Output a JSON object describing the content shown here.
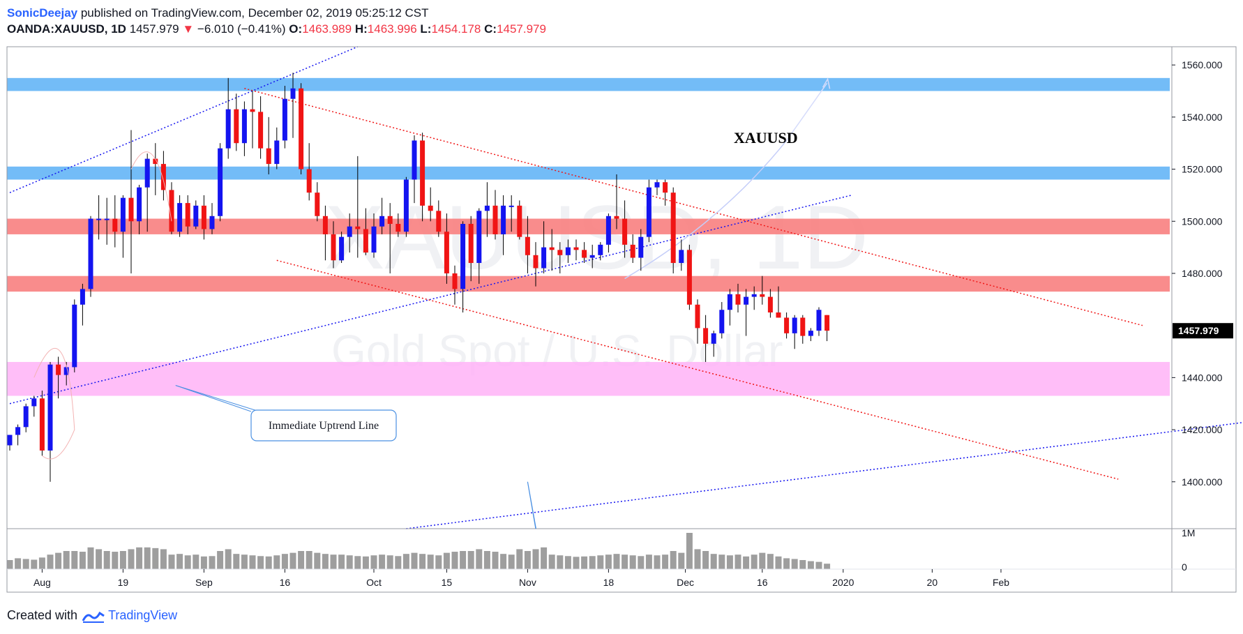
{
  "header": {
    "author": "SonicDeejay",
    "published_text": "published on TradingView.com, December 02, 2019 05:25:12 CST",
    "symbol": "OANDA:XAUUSD, 1D",
    "last": "1457.979",
    "change": "−6.010 (−0.41%)",
    "open_label": "O:",
    "open": "1463.989",
    "high_label": "H:",
    "high": "1463.996",
    "low_label": "L:",
    "low": "1454.178",
    "close_label": "C:",
    "close": "1457.979"
  },
  "footer": {
    "created_with": "Created with",
    "brand": "TradingView"
  },
  "watermark": {
    "symbol": "XAUUSD, 1D",
    "description": "Gold Spot / U.S. Dollar"
  },
  "annotations": {
    "title": "XAUUSD",
    "callout": "Immediate Uptrend Line"
  },
  "colors": {
    "up": "#1414f0",
    "down": "#f01414",
    "resistance_zone": "#64b5f6",
    "pivot_zone": "#f88080",
    "support_zone": "#ffb3f7"
  },
  "chart_data": {
    "type": "candlestick",
    "symbol": "OANDA:XAUUSD",
    "interval": "1D",
    "ylim": [
      1382,
      1567
    ],
    "y_ticks": [
      "1400.000",
      "1420.000",
      "1440.000",
      "1460.000",
      "1480.000",
      "1500.000",
      "1520.000",
      "1540.000",
      "1560.000"
    ],
    "x_ticks": [
      "Aug",
      "19",
      "Sep",
      "16",
      "Oct",
      "15",
      "Nov",
      "18",
      "Dec",
      "16",
      "2020",
      "20",
      "Feb"
    ],
    "last_price_label": "1457.979",
    "volume_axis": [
      "1M",
      "0"
    ],
    "zones": [
      {
        "name": "resistance",
        "from": 1550,
        "to": 1555
      },
      {
        "name": "resistance",
        "from": 1516,
        "to": 1521
      },
      {
        "name": "pivot",
        "from": 1495,
        "to": 1501
      },
      {
        "name": "pivot",
        "from": 1473,
        "to": 1479
      },
      {
        "name": "support",
        "from": 1433,
        "to": 1446
      }
    ],
    "candles": [
      {
        "o": 1414,
        "h": 1418,
        "l": 1412,
        "c": 1418,
        "v": 0.25
      },
      {
        "o": 1418,
        "h": 1422,
        "l": 1414,
        "c": 1421,
        "v": 0.3
      },
      {
        "o": 1421,
        "h": 1430,
        "l": 1419,
        "c": 1429,
        "v": 0.28
      },
      {
        "o": 1429,
        "h": 1433,
        "l": 1425,
        "c": 1432,
        "v": 0.26
      },
      {
        "o": 1432,
        "h": 1435,
        "l": 1410,
        "c": 1412,
        "v": 0.32
      },
      {
        "o": 1412,
        "h": 1446,
        "l": 1400,
        "c": 1445,
        "v": 0.4
      },
      {
        "o": 1445,
        "h": 1448,
        "l": 1432,
        "c": 1441,
        "v": 0.45
      },
      {
        "o": 1441,
        "h": 1446,
        "l": 1437,
        "c": 1444,
        "v": 0.5
      },
      {
        "o": 1444,
        "h": 1470,
        "l": 1442,
        "c": 1468,
        "v": 0.5
      },
      {
        "o": 1468,
        "h": 1476,
        "l": 1460,
        "c": 1474,
        "v": 0.48
      },
      {
        "o": 1474,
        "h": 1502,
        "l": 1471,
        "c": 1501,
        "v": 0.6
      },
      {
        "o": 1501,
        "h": 1510,
        "l": 1493,
        "c": 1501,
        "v": 0.55
      },
      {
        "o": 1501,
        "h": 1509,
        "l": 1491,
        "c": 1501,
        "v": 0.5
      },
      {
        "o": 1501,
        "h": 1510,
        "l": 1490,
        "c": 1496,
        "v": 0.48
      },
      {
        "o": 1496,
        "h": 1510,
        "l": 1486,
        "c": 1509,
        "v": 0.5
      },
      {
        "o": 1509,
        "h": 1535,
        "l": 1480,
        "c": 1500,
        "v": 0.55
      },
      {
        "o": 1500,
        "h": 1514,
        "l": 1495,
        "c": 1513,
        "v": 0.6
      },
      {
        "o": 1513,
        "h": 1526,
        "l": 1496,
        "c": 1524,
        "v": 0.6
      },
      {
        "o": 1524,
        "h": 1530,
        "l": 1510,
        "c": 1522,
        "v": 0.58
      },
      {
        "o": 1522,
        "h": 1527,
        "l": 1508,
        "c": 1512,
        "v": 0.55
      },
      {
        "o": 1512,
        "h": 1515,
        "l": 1495,
        "c": 1496,
        "v": 0.4
      },
      {
        "o": 1496,
        "h": 1510,
        "l": 1494,
        "c": 1507,
        "v": 0.42
      },
      {
        "o": 1507,
        "h": 1510,
        "l": 1495,
        "c": 1498,
        "v": 0.38
      },
      {
        "o": 1498,
        "h": 1508,
        "l": 1497,
        "c": 1506,
        "v": 0.4
      },
      {
        "o": 1506,
        "h": 1510,
        "l": 1493,
        "c": 1497,
        "v": 0.35
      },
      {
        "o": 1497,
        "h": 1507,
        "l": 1495,
        "c": 1502,
        "v": 0.36
      },
      {
        "o": 1502,
        "h": 1530,
        "l": 1500,
        "c": 1528,
        "v": 0.5
      },
      {
        "o": 1528,
        "h": 1555,
        "l": 1524,
        "c": 1543,
        "v": 0.55
      },
      {
        "o": 1543,
        "h": 1549,
        "l": 1527,
        "c": 1530,
        "v": 0.42
      },
      {
        "o": 1530,
        "h": 1546,
        "l": 1525,
        "c": 1543,
        "v": 0.4
      },
      {
        "o": 1543,
        "h": 1550,
        "l": 1528,
        "c": 1542,
        "v": 0.38
      },
      {
        "o": 1542,
        "h": 1548,
        "l": 1524,
        "c": 1528,
        "v": 0.36
      },
      {
        "o": 1528,
        "h": 1540,
        "l": 1518,
        "c": 1522,
        "v": 0.35
      },
      {
        "o": 1522,
        "h": 1536,
        "l": 1520,
        "c": 1531,
        "v": 0.38
      },
      {
        "o": 1531,
        "h": 1552,
        "l": 1528,
        "c": 1547,
        "v": 0.42
      },
      {
        "o": 1547,
        "h": 1557,
        "l": 1532,
        "c": 1551,
        "v": 0.45
      },
      {
        "o": 1551,
        "h": 1553,
        "l": 1518,
        "c": 1520,
        "v": 0.5
      },
      {
        "o": 1520,
        "h": 1530,
        "l": 1508,
        "c": 1511,
        "v": 0.5
      },
      {
        "o": 1511,
        "h": 1515,
        "l": 1500,
        "c": 1502,
        "v": 0.45
      },
      {
        "o": 1502,
        "h": 1506,
        "l": 1485,
        "c": 1495,
        "v": 0.42
      },
      {
        "o": 1495,
        "h": 1500,
        "l": 1482,
        "c": 1485,
        "v": 0.4
      },
      {
        "o": 1485,
        "h": 1496,
        "l": 1484,
        "c": 1494,
        "v": 0.4
      },
      {
        "o": 1494,
        "h": 1503,
        "l": 1488,
        "c": 1498,
        "v": 0.38
      },
      {
        "o": 1498,
        "h": 1525,
        "l": 1486,
        "c": 1497,
        "v": 0.36
      },
      {
        "o": 1497,
        "h": 1505,
        "l": 1487,
        "c": 1488,
        "v": 0.35
      },
      {
        "o": 1488,
        "h": 1503,
        "l": 1486,
        "c": 1498,
        "v": 0.38
      },
      {
        "o": 1498,
        "h": 1509,
        "l": 1495,
        "c": 1502,
        "v": 0.4
      },
      {
        "o": 1502,
        "h": 1507,
        "l": 1480,
        "c": 1499,
        "v": 0.38
      },
      {
        "o": 1499,
        "h": 1503,
        "l": 1494,
        "c": 1496,
        "v": 0.36
      },
      {
        "o": 1496,
        "h": 1517,
        "l": 1494,
        "c": 1516,
        "v": 0.42
      },
      {
        "o": 1516,
        "h": 1533,
        "l": 1507,
        "c": 1531,
        "v": 0.45
      },
      {
        "o": 1531,
        "h": 1534,
        "l": 1500,
        "c": 1506,
        "v": 0.42
      },
      {
        "o": 1506,
        "h": 1513,
        "l": 1500,
        "c": 1504,
        "v": 0.4
      },
      {
        "o": 1504,
        "h": 1508,
        "l": 1494,
        "c": 1496,
        "v": 0.38
      },
      {
        "o": 1496,
        "h": 1503,
        "l": 1476,
        "c": 1480,
        "v": 0.45
      },
      {
        "o": 1480,
        "h": 1483,
        "l": 1468,
        "c": 1474,
        "v": 0.48
      },
      {
        "o": 1474,
        "h": 1500,
        "l": 1465,
        "c": 1499,
        "v": 0.5
      },
      {
        "o": 1499,
        "h": 1502,
        "l": 1477,
        "c": 1484,
        "v": 0.5
      },
      {
        "o": 1484,
        "h": 1505,
        "l": 1476,
        "c": 1504,
        "v": 0.55
      },
      {
        "o": 1504,
        "h": 1515,
        "l": 1494,
        "c": 1506,
        "v": 0.5
      },
      {
        "o": 1506,
        "h": 1512,
        "l": 1493,
        "c": 1495,
        "v": 0.48
      },
      {
        "o": 1495,
        "h": 1510,
        "l": 1487,
        "c": 1506,
        "v": 0.42
      },
      {
        "o": 1506,
        "h": 1510,
        "l": 1496,
        "c": 1506,
        "v": 0.4
      },
      {
        "o": 1506,
        "h": 1508,
        "l": 1493,
        "c": 1494,
        "v": 0.55
      },
      {
        "o": 1494,
        "h": 1502,
        "l": 1480,
        "c": 1487,
        "v": 0.5
      },
      {
        "o": 1487,
        "h": 1492,
        "l": 1475,
        "c": 1482,
        "v": 0.55
      },
      {
        "o": 1482,
        "h": 1500,
        "l": 1480,
        "c": 1490,
        "v": 0.6
      },
      {
        "o": 1490,
        "h": 1497,
        "l": 1481,
        "c": 1489,
        "v": 0.4
      },
      {
        "o": 1489,
        "h": 1492,
        "l": 1480,
        "c": 1487,
        "v": 0.38
      },
      {
        "o": 1487,
        "h": 1493,
        "l": 1484,
        "c": 1490,
        "v": 0.36
      },
      {
        "o": 1490,
        "h": 1493,
        "l": 1485,
        "c": 1489,
        "v": 0.34
      },
      {
        "o": 1489,
        "h": 1492,
        "l": 1484,
        "c": 1486,
        "v": 0.35
      },
      {
        "o": 1486,
        "h": 1491,
        "l": 1482,
        "c": 1487,
        "v": 0.36
      },
      {
        "o": 1487,
        "h": 1492,
        "l": 1485,
        "c": 1491,
        "v": 0.38
      },
      {
        "o": 1491,
        "h": 1503,
        "l": 1488,
        "c": 1502,
        "v": 0.4
      },
      {
        "o": 1502,
        "h": 1518,
        "l": 1497,
        "c": 1501,
        "v": 0.42
      },
      {
        "o": 1501,
        "h": 1508,
        "l": 1486,
        "c": 1491,
        "v": 0.4
      },
      {
        "o": 1491,
        "h": 1495,
        "l": 1484,
        "c": 1486,
        "v": 0.38
      },
      {
        "o": 1486,
        "h": 1497,
        "l": 1481,
        "c": 1494,
        "v": 0.36
      },
      {
        "o": 1494,
        "h": 1516,
        "l": 1492,
        "c": 1513,
        "v": 0.4
      },
      {
        "o": 1513,
        "h": 1516,
        "l": 1510,
        "c": 1515,
        "v": 0.38
      },
      {
        "o": 1515,
        "h": 1516,
        "l": 1506,
        "c": 1511,
        "v": 0.4
      },
      {
        "o": 1511,
        "h": 1513,
        "l": 1480,
        "c": 1484,
        "v": 0.5
      },
      {
        "o": 1484,
        "h": 1493,
        "l": 1481,
        "c": 1489,
        "v": 0.45
      },
      {
        "o": 1489,
        "h": 1491,
        "l": 1466,
        "c": 1468,
        "v": 1.0
      },
      {
        "o": 1468,
        "h": 1470,
        "l": 1453,
        "c": 1459,
        "v": 0.55
      },
      {
        "o": 1459,
        "h": 1464,
        "l": 1446,
        "c": 1453,
        "v": 0.5
      },
      {
        "o": 1453,
        "h": 1458,
        "l": 1448,
        "c": 1457,
        "v": 0.42
      },
      {
        "o": 1457,
        "h": 1469,
        "l": 1455,
        "c": 1466,
        "v": 0.4
      },
      {
        "o": 1466,
        "h": 1474,
        "l": 1460,
        "c": 1472,
        "v": 0.38
      },
      {
        "o": 1472,
        "h": 1476,
        "l": 1465,
        "c": 1468,
        "v": 0.4
      },
      {
        "o": 1468,
        "h": 1474,
        "l": 1456,
        "c": 1471,
        "v": 0.35
      },
      {
        "o": 1471,
        "h": 1475,
        "l": 1466,
        "c": 1472,
        "v": 0.4
      },
      {
        "o": 1472,
        "h": 1479,
        "l": 1468,
        "c": 1471,
        "v": 0.45
      },
      {
        "o": 1471,
        "h": 1474,
        "l": 1463,
        "c": 1465,
        "v": 0.42
      },
      {
        "o": 1465,
        "h": 1475,
        "l": 1463,
        "c": 1463,
        "v": 0.35
      },
      {
        "o": 1463,
        "h": 1465,
        "l": 1455,
        "c": 1457,
        "v": 0.3
      },
      {
        "o": 1457,
        "h": 1464,
        "l": 1451,
        "c": 1463,
        "v": 0.28
      },
      {
        "o": 1463,
        "h": 1464,
        "l": 1453,
        "c": 1456,
        "v": 0.25
      },
      {
        "o": 1456,
        "h": 1459,
        "l": 1454,
        "c": 1458,
        "v": 0.22
      },
      {
        "o": 1458,
        "h": 1467,
        "l": 1456,
        "c": 1466,
        "v": 0.2
      },
      {
        "o": 1464,
        "h": 1464,
        "l": 1454,
        "c": 1458,
        "v": 0.15
      }
    ],
    "trendlines": [
      {
        "name": "upper-channel-dotted-blue",
        "from": [
          0,
          1511
        ],
        "to": [
          43,
          1567
        ],
        "color": "#1414f0"
      },
      {
        "name": "immediate-uptrend",
        "from": [
          0,
          1430
        ],
        "to": [
          104,
          1510
        ],
        "color": "#1414f0"
      },
      {
        "name": "long-uptrend",
        "from": [
          49,
          1382
        ],
        "to": [
          153,
          1423
        ],
        "color": "#1414f0"
      },
      {
        "name": "upper-downtrend",
        "from": [
          29,
          1551
        ],
        "to": [
          140,
          1460
        ],
        "color": "#f01414"
      },
      {
        "name": "lower-downtrend",
        "from": [
          33,
          1485
        ],
        "to": [
          137,
          1401
        ],
        "color": "#f01414"
      }
    ]
  }
}
